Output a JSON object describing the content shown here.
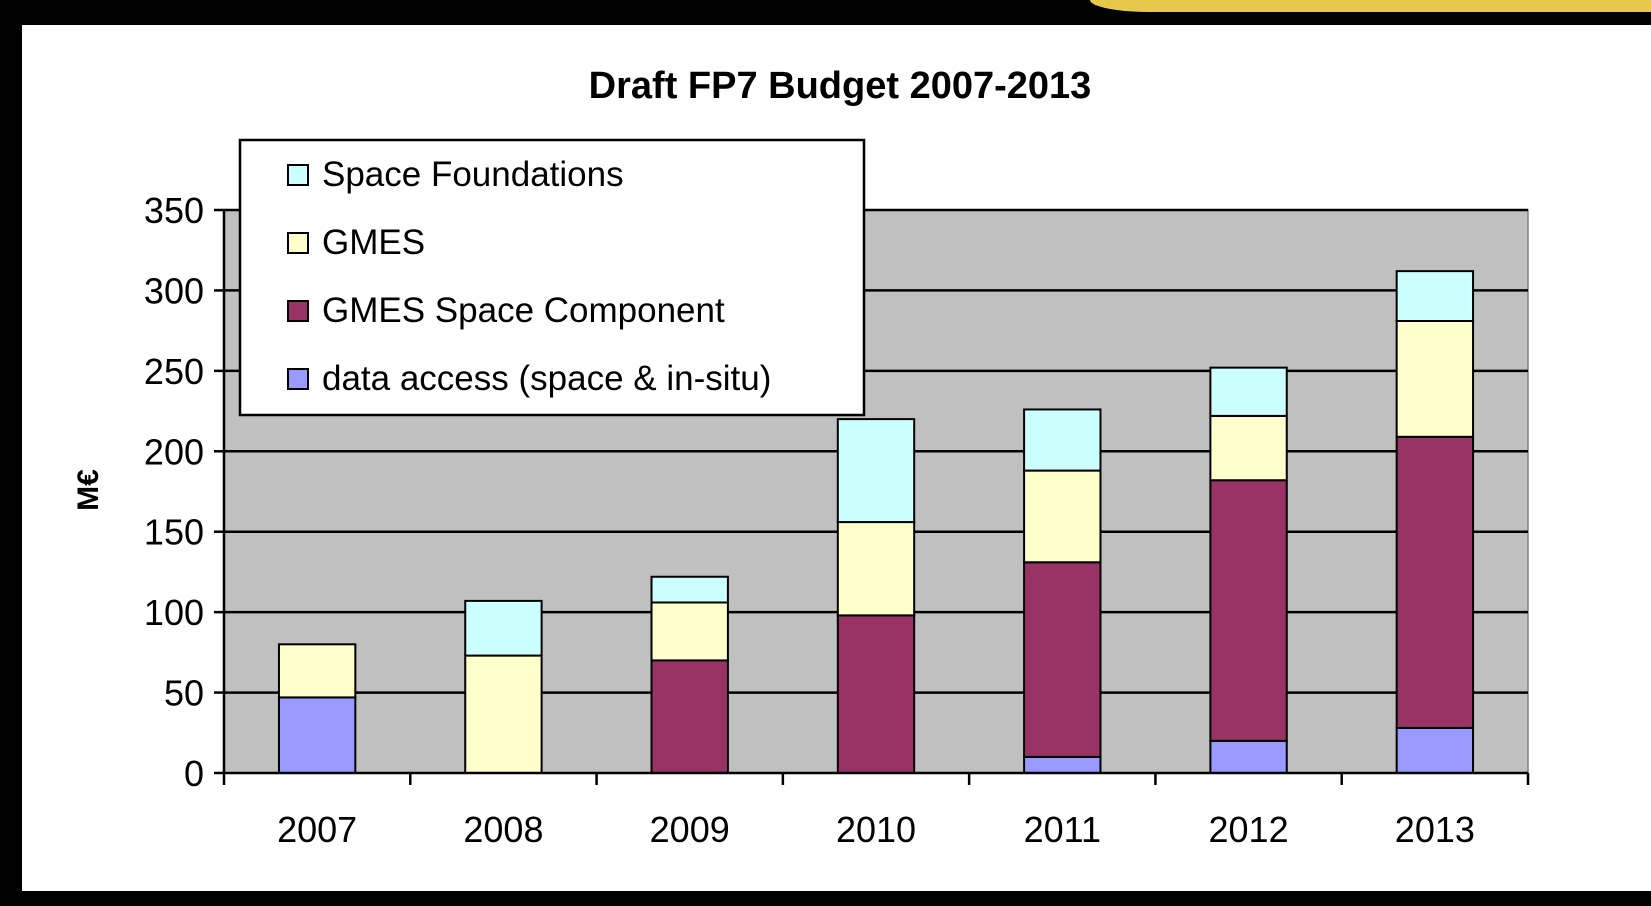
{
  "chart_data": {
    "type": "bar",
    "stacked": true,
    "title": "Draft FP7 Budget 2007-2013",
    "xlabel": "",
    "ylabel": "M€",
    "ylim": [
      0,
      350
    ],
    "yticks": [
      0,
      50,
      100,
      150,
      200,
      250,
      300,
      350
    ],
    "categories": [
      "2007",
      "2008",
      "2009",
      "2010",
      "2011",
      "2012",
      "2013"
    ],
    "series": [
      {
        "name": "data access (space & in-situ)",
        "color": "#9999ff",
        "values": [
          47,
          0,
          0,
          0,
          10,
          20,
          28
        ]
      },
      {
        "name": "GMES Space Component",
        "color": "#993366",
        "values": [
          0,
          0,
          70,
          98,
          121,
          162,
          181
        ]
      },
      {
        "name": "GMES",
        "color": "#ffffcc",
        "values": [
          33,
          73,
          36,
          58,
          57,
          40,
          72
        ]
      },
      {
        "name": "Space Foundations",
        "color": "#ccffff",
        "values": [
          0,
          34,
          16,
          64,
          38,
          30,
          31
        ]
      }
    ],
    "legend_order": [
      "Space Foundations",
      "GMES",
      "GMES Space Component",
      "data access (space & in-situ)"
    ],
    "legend_position": "top-left",
    "grid": true,
    "plot_background": "#c0c0c0"
  }
}
